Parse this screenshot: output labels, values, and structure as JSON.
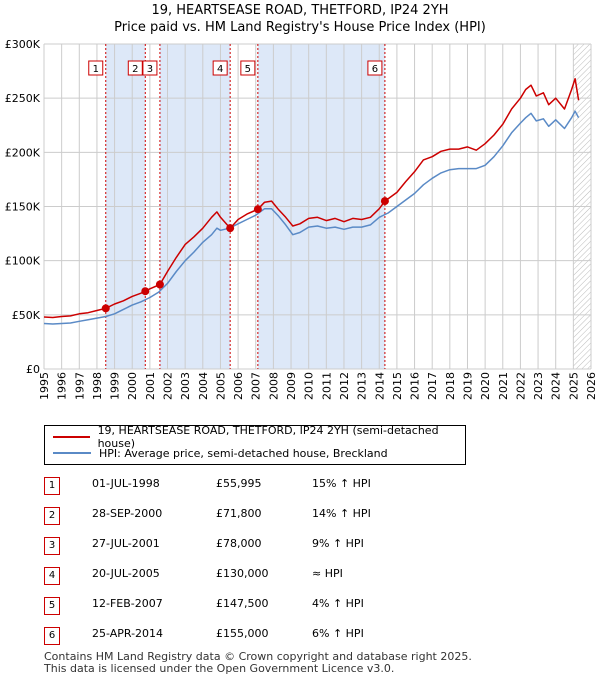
{
  "title_line1": "19, HEARTSEASE ROAD, THETFORD, IP24 2YH",
  "title_line2": "Price paid vs. HM Land Registry's House Price Index (HPI)",
  "legend": {
    "property_label": "19, HEARTSEASE ROAD, THETFORD, IP24 2YH (semi-detached house)",
    "hpi_label": "HPI: Average price, semi-detached house, Breckland"
  },
  "colors": {
    "property": "#cc0000",
    "hpi": "#5a8ac6",
    "shade": "#dde8f8",
    "grid": "#cccccc"
  },
  "sales": [
    {
      "num": "1",
      "date": "01-JUL-1998",
      "price": "£55,995",
      "delta": "15% ↑ HPI"
    },
    {
      "num": "2",
      "date": "28-SEP-2000",
      "price": "£71,800",
      "delta": "14% ↑ HPI"
    },
    {
      "num": "3",
      "date": "27-JUL-2001",
      "price": "£78,000",
      "delta": "9% ↑ HPI"
    },
    {
      "num": "4",
      "date": "20-JUL-2005",
      "price": "£130,000",
      "delta": "≈ HPI"
    },
    {
      "num": "5",
      "date": "12-FEB-2007",
      "price": "£147,500",
      "delta": "4% ↑ HPI"
    },
    {
      "num": "6",
      "date": "25-APR-2014",
      "price": "£155,000",
      "delta": "6% ↑ HPI"
    }
  ],
  "footer": {
    "line1": "Contains HM Land Registry data © Crown copyright and database right 2025.",
    "line2": "This data is licensed under the Open Government Licence v3.0."
  },
  "chart_data": {
    "type": "line",
    "title": "19, HEARTSEASE ROAD, THETFORD, IP24 2YH — Price paid vs. HM Land Registry's House Price Index (HPI)",
    "xlim": [
      1995,
      2026
    ],
    "ylim": [
      0,
      300000
    ],
    "x_ticks": [
      1995,
      1996,
      1997,
      1998,
      1999,
      2000,
      2001,
      2002,
      2003,
      2004,
      2005,
      2006,
      2007,
      2008,
      2009,
      2010,
      2011,
      2012,
      2013,
      2014,
      2015,
      2016,
      2017,
      2018,
      2019,
      2020,
      2021,
      2022,
      2023,
      2024,
      2025,
      2026
    ],
    "y_ticks": [
      {
        "value": 0,
        "label": "£0"
      },
      {
        "value": 50000,
        "label": "£50K"
      },
      {
        "value": 100000,
        "label": "£100K"
      },
      {
        "value": 150000,
        "label": "£150K"
      },
      {
        "value": 200000,
        "label": "£200K"
      },
      {
        "value": 250000,
        "label": "£250K"
      },
      {
        "value": 300000,
        "label": "£300K"
      }
    ],
    "shaded_ranges": [
      [
        1998.5,
        2000.74
      ],
      [
        2001.57,
        2005.55
      ],
      [
        2007.12,
        2014.32
      ]
    ],
    "hatched_from": 2025.0,
    "markers": [
      {
        "label": "1",
        "x": 1998.5,
        "y": 55995
      },
      {
        "label": "2",
        "x": 2000.74,
        "y": 71800
      },
      {
        "label": "3",
        "x": 2001.57,
        "y": 78000
      },
      {
        "label": "4",
        "x": 2005.55,
        "y": 130000
      },
      {
        "label": "5",
        "x": 2007.12,
        "y": 147500
      },
      {
        "label": "6",
        "x": 2014.32,
        "y": 155000
      }
    ],
    "series": [
      {
        "name": "19, HEARTSEASE ROAD, THETFORD, IP24 2YH (semi-detached house)",
        "x": [
          1995,
          1995.5,
          1996,
          1996.5,
          1997,
          1997.5,
          1998,
          1998.5,
          1999,
          1999.5,
          2000,
          2000.5,
          2000.74,
          2001,
          2001.57,
          2002,
          2002.5,
          2003,
          2003.5,
          2004,
          2004.5,
          2004.8,
          2005,
          2005.55,
          2006,
          2006.5,
          2007.12,
          2007.5,
          2007.9,
          2008.3,
          2008.7,
          2009.1,
          2009.5,
          2010,
          2010.5,
          2011,
          2011.5,
          2012,
          2012.5,
          2013,
          2013.5,
          2014,
          2014.32,
          2015,
          2015.5,
          2016,
          2016.5,
          2017,
          2017.5,
          2018,
          2018.5,
          2019,
          2019.5,
          2020,
          2020.5,
          2021,
          2021.5,
          2022,
          2022.3,
          2022.6,
          2022.9,
          2023.3,
          2023.6,
          2024,
          2024.5,
          2024.9,
          2025.1,
          2025.3
        ],
        "y": [
          48000,
          47500,
          48500,
          49000,
          51000,
          52000,
          54000,
          55995,
          60000,
          63000,
          67000,
          70000,
          71800,
          74000,
          78000,
          90000,
          103000,
          115000,
          122000,
          130000,
          140000,
          145000,
          140000,
          130000,
          138000,
          143000,
          147500,
          154000,
          155000,
          147000,
          140000,
          132000,
          134000,
          139000,
          140000,
          137000,
          139000,
          136000,
          139000,
          138000,
          140000,
          148000,
          155000,
          163000,
          173000,
          182000,
          193000,
          196000,
          201000,
          203000,
          203000,
          205000,
          202000,
          208000,
          216000,
          226000,
          240000,
          250000,
          258000,
          262000,
          252000,
          255000,
          244000,
          250000,
          240000,
          258000,
          268000,
          248000
        ]
      },
      {
        "name": "HPI: Average price, semi-detached house, Breckland",
        "x": [
          1995,
          1995.5,
          1996,
          1996.5,
          1997,
          1997.5,
          1998,
          1998.5,
          1999,
          1999.5,
          2000,
          2000.5,
          2001,
          2001.5,
          2002,
          2002.5,
          2003,
          2003.5,
          2004,
          2004.5,
          2004.8,
          2005,
          2005.5,
          2006,
          2006.5,
          2007,
          2007.5,
          2007.9,
          2008.3,
          2008.7,
          2009.1,
          2009.5,
          2010,
          2010.5,
          2011,
          2011.5,
          2012,
          2012.5,
          2013,
          2013.5,
          2014,
          2014.5,
          2015,
          2015.5,
          2016,
          2016.5,
          2017,
          2017.5,
          2018,
          2018.5,
          2019,
          2019.5,
          2020,
          2020.5,
          2021,
          2021.5,
          2022,
          2022.3,
          2022.6,
          2022.9,
          2023.3,
          2023.6,
          2024,
          2024.5,
          2024.9,
          2025.1,
          2025.3
        ],
        "y": [
          42000,
          41500,
          42000,
          42500,
          44000,
          45500,
          47000,
          48500,
          51000,
          55000,
          59000,
          62000,
          66000,
          71000,
          79000,
          90000,
          100000,
          108000,
          117000,
          124000,
          130000,
          128000,
          130000,
          134000,
          138000,
          142000,
          148000,
          148000,
          141000,
          133000,
          124000,
          126000,
          131000,
          132000,
          130000,
          131000,
          129000,
          131000,
          131000,
          133000,
          140000,
          144000,
          150000,
          156000,
          162000,
          170000,
          176000,
          181000,
          184000,
          185000,
          185000,
          185000,
          188000,
          196000,
          206000,
          218000,
          227000,
          232000,
          236000,
          229000,
          231000,
          224000,
          230000,
          222000,
          232000,
          238000,
          232000
        ]
      }
    ]
  }
}
